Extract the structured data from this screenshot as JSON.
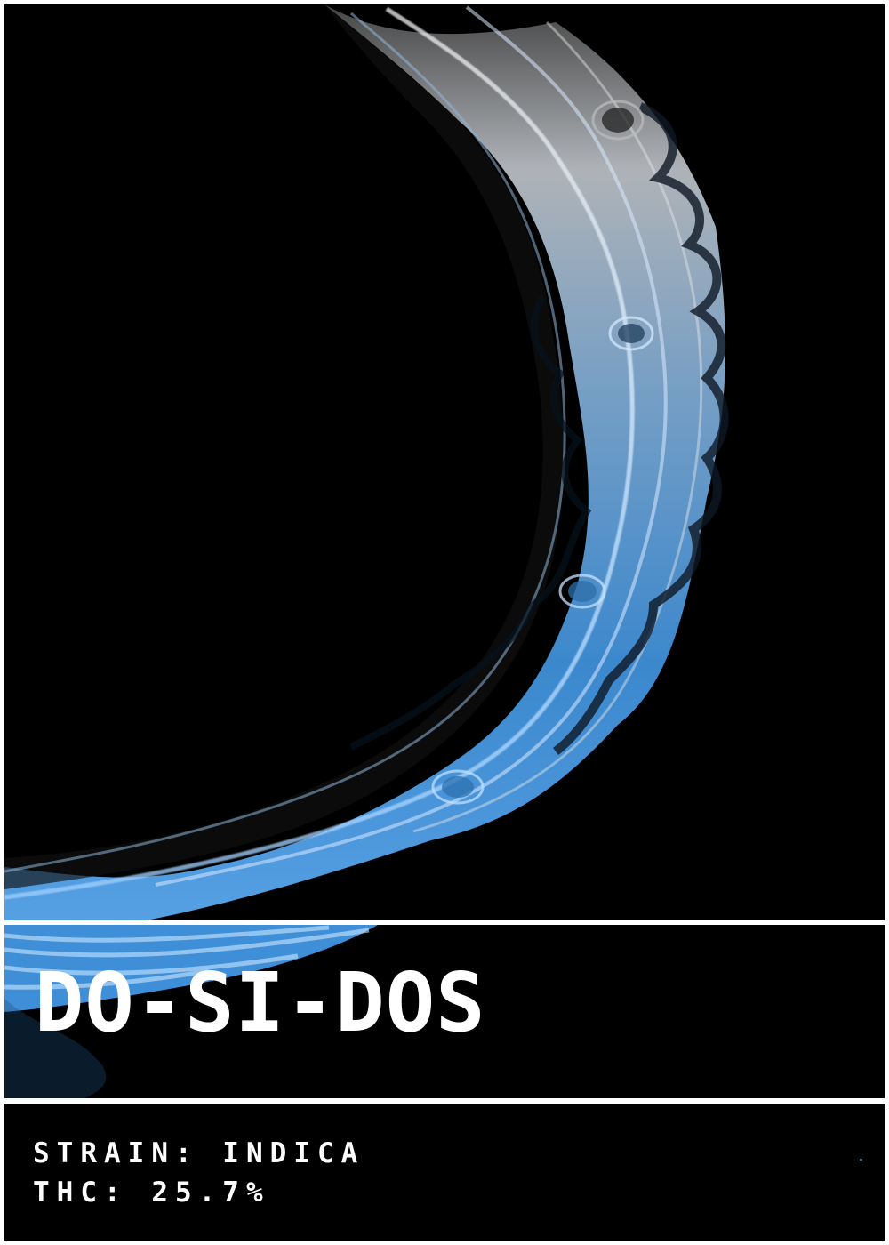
{
  "title": "DO-SI-DOS",
  "strain_line": "STRAIN: INDICA",
  "thc_line": "THC: 25.7%",
  "colors": {
    "background": "#000000",
    "frame": "#ffffff",
    "text": "#ffffff",
    "silver": "#c9cfd5",
    "blue": "#3f8fd8",
    "dark_blue": "#1d4f7c"
  },
  "artwork": {
    "name": "flowing-marbled-arc",
    "style": "silver-to-blue liquid marble ring"
  }
}
